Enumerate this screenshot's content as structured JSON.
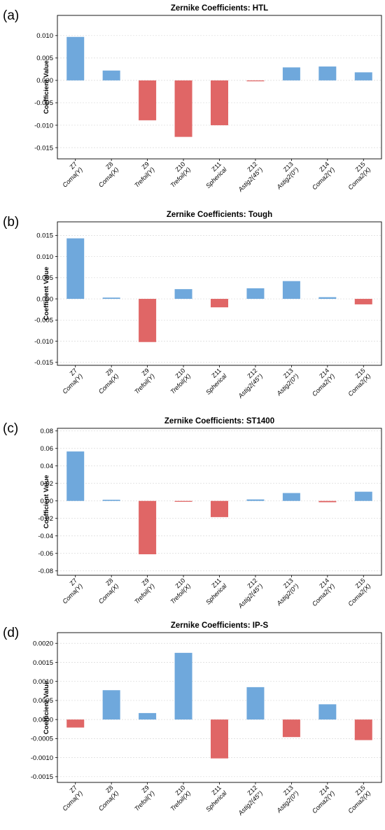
{
  "colors": {
    "positive": "#6fa8dc",
    "negative": "#e06666",
    "axis": "#000000",
    "grid": "#d9d9d9"
  },
  "categories": [
    {
      "z": "Z7",
      "name": "Coma(Y)"
    },
    {
      "z": "Z8",
      "name": "Coma(X)"
    },
    {
      "z": "Z9",
      "name": "Trefoil(Y)"
    },
    {
      "z": "Z10",
      "name": "Trefoil(X)"
    },
    {
      "z": "Z11",
      "name": "Spherical"
    },
    {
      "z": "Z12",
      "name": "Astig2(45°)"
    },
    {
      "z": "Z13",
      "name": "Astig2(0°)"
    },
    {
      "z": "Z14",
      "name": "Coma2(Y)"
    },
    {
      "z": "Z15",
      "name": "Coma2(X)"
    }
  ],
  "chart_data": [
    {
      "panel": "(a)",
      "type": "bar",
      "title": "Zernike Coefficients: HTL",
      "ylabel": "Coefficient Value",
      "ylim": [
        -0.0175,
        0.0145
      ],
      "yticks": [
        0.01,
        0.005,
        0.0,
        -0.005,
        -0.01,
        -0.015
      ],
      "ytick_labels": [
        "0.010",
        "0.005",
        "0.000",
        "-0.005",
        "-0.010",
        "-0.015"
      ],
      "values": [
        0.0097,
        0.0022,
        -0.0089,
        -0.0126,
        -0.01,
        -0.0002,
        0.0029,
        0.0031,
        0.0018
      ]
    },
    {
      "panel": "(b)",
      "type": "bar",
      "title": "Zernike Coefficients: Tough",
      "ylabel": "Coefficient Value",
      "ylim": [
        -0.0157,
        0.0182
      ],
      "yticks": [
        0.015,
        0.01,
        0.005,
        0.0,
        -0.005,
        -0.01,
        -0.015
      ],
      "ytick_labels": [
        "0.015",
        "0.010",
        "0.005",
        "0.000",
        "-0.005",
        "-0.010",
        "-0.015"
      ],
      "values": [
        0.0143,
        0.0003,
        -0.0102,
        0.0023,
        -0.002,
        0.0025,
        0.0042,
        0.0004,
        -0.0013
      ]
    },
    {
      "panel": "(c)",
      "type": "bar",
      "title": "Zernike Coefficients: ST1400",
      "ylabel": "Coefficient Value",
      "ylim": [
        -0.085,
        0.083
      ],
      "yticks": [
        0.08,
        0.06,
        0.04,
        0.02,
        0.0,
        -0.02,
        -0.04,
        -0.06,
        -0.08
      ],
      "ytick_labels": [
        "0.08",
        "0.06",
        "0.04",
        "0.02",
        "0.00",
        "-0.02",
        "-0.04",
        "-0.06",
        "-0.08"
      ],
      "values": [
        0.0565,
        0.0013,
        -0.061,
        -0.001,
        -0.0185,
        0.0017,
        0.009,
        -0.0015,
        0.0105
      ]
    },
    {
      "panel": "(d)",
      "type": "bar",
      "title": "Zernike Coefficients: IP-S",
      "ylabel": "Coefficient Value",
      "ylim": [
        -0.00165,
        0.00228
      ],
      "yticks": [
        0.002,
        0.0015,
        0.001,
        0.0005,
        0.0,
        -0.0005,
        -0.001,
        -0.0015
      ],
      "ytick_labels": [
        "0.0020",
        "0.0015",
        "0.0010",
        "0.0005",
        "0.0000",
        "-0.0005",
        "-0.0010",
        "-0.0015"
      ],
      "values": [
        -0.00021,
        0.00077,
        0.00017,
        0.00175,
        -0.00102,
        0.00085,
        -0.00046,
        0.0004,
        -0.00054
      ]
    }
  ]
}
